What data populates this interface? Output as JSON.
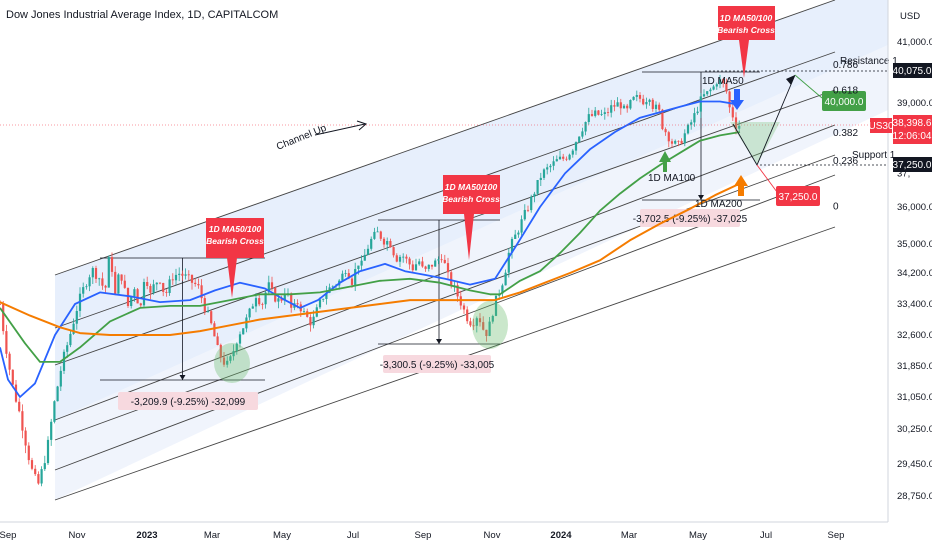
{
  "title": "Dow Jones Industrial Average Index, 1D, CAPITALCOM",
  "currency": "USD",
  "symbol": "US30",
  "last_price": "38,398.6",
  "countdown": "12:06:04",
  "colors": {
    "up": "#26a69a",
    "down": "#ef5350",
    "ma50": "#2962ff",
    "ma100": "#43a047",
    "ma200": "#f57c00",
    "callout": "#f23645",
    "channel_fill": "#e3ecfb",
    "measure_fill": "#f7d9df"
  },
  "chart_data": {
    "type": "candlestick",
    "x_labels": [
      "Sep",
      "Nov",
      "2023",
      "Mar",
      "May",
      "Jul",
      "Sep",
      "Nov",
      "2024",
      "Mar",
      "May",
      "Jul",
      "Sep"
    ],
    "y_ticks": [
      "41,000.0",
      "39,000.0",
      "36,000.0",
      "35,000.0",
      "34,200.0",
      "33,400.0",
      "32,600.0",
      "31,850.0",
      "31,050.0",
      "30,250.0",
      "29,450.0",
      "28,750.0"
    ],
    "y_ticks_partial": [
      "38,",
      "37,"
    ],
    "series": [
      {
        "name": "1D MA50",
        "anchors": [
          [
            0,
            32300
          ],
          [
            8,
            31500
          ],
          [
            20,
            31050
          ],
          [
            35,
            31400
          ],
          [
            55,
            32600
          ],
          [
            75,
            33400
          ],
          [
            100,
            33700
          ],
          [
            130,
            33600
          ],
          [
            160,
            33450
          ],
          [
            190,
            33500
          ],
          [
            215,
            33750
          ],
          [
            240,
            33950
          ],
          [
            265,
            33800
          ],
          [
            285,
            33500
          ],
          [
            300,
            33300
          ],
          [
            318,
            33500
          ],
          [
            340,
            33950
          ],
          [
            360,
            34250
          ],
          [
            385,
            34450
          ],
          [
            405,
            34250
          ],
          [
            425,
            34150
          ],
          [
            445,
            34050
          ],
          [
            470,
            33900
          ],
          [
            495,
            34050
          ],
          [
            515,
            34900
          ],
          [
            540,
            36000
          ],
          [
            565,
            37000
          ],
          [
            590,
            37700
          ],
          [
            615,
            38200
          ],
          [
            640,
            38600
          ],
          [
            660,
            38750
          ],
          [
            680,
            38900
          ],
          [
            700,
            39050
          ],
          [
            720,
            39050
          ],
          [
            740,
            38950
          ]
        ]
      },
      {
        "name": "1D MA100",
        "anchors": [
          [
            0,
            33300
          ],
          [
            25,
            32400
          ],
          [
            40,
            31950
          ],
          [
            60,
            31950
          ],
          [
            80,
            32300
          ],
          [
            110,
            32950
          ],
          [
            140,
            33300
          ],
          [
            170,
            33350
          ],
          [
            200,
            33350
          ],
          [
            230,
            33500
          ],
          [
            260,
            33650
          ],
          [
            290,
            33650
          ],
          [
            320,
            33700
          ],
          [
            350,
            33850
          ],
          [
            380,
            34000
          ],
          [
            410,
            34050
          ],
          [
            440,
            33950
          ],
          [
            470,
            33750
          ],
          [
            490,
            33650
          ],
          [
            500,
            33650
          ],
          [
            520,
            34000
          ],
          [
            540,
            34250
          ],
          [
            560,
            34750
          ],
          [
            580,
            35300
          ],
          [
            600,
            35900
          ],
          [
            620,
            36400
          ],
          [
            640,
            36850
          ],
          [
            660,
            37250
          ],
          [
            680,
            37600
          ],
          [
            700,
            37950
          ],
          [
            720,
            38100
          ],
          [
            740,
            38200
          ]
        ]
      },
      {
        "name": "1D MA200",
        "anchors": [
          [
            0,
            33450
          ],
          [
            30,
            33100
          ],
          [
            60,
            32800
          ],
          [
            80,
            32650
          ],
          [
            110,
            32600
          ],
          [
            140,
            32600
          ],
          [
            170,
            32600
          ],
          [
            200,
            32700
          ],
          [
            230,
            32850
          ],
          [
            260,
            33000
          ],
          [
            290,
            33100
          ],
          [
            320,
            33200
          ],
          [
            350,
            33300
          ],
          [
            380,
            33400
          ],
          [
            410,
            33500
          ],
          [
            440,
            33500
          ],
          [
            470,
            33500
          ],
          [
            495,
            33500
          ],
          [
            520,
            33700
          ],
          [
            545,
            33950
          ],
          [
            570,
            34200
          ],
          [
            600,
            34550
          ],
          [
            630,
            35100
          ],
          [
            660,
            35550
          ],
          [
            690,
            35950
          ],
          [
            715,
            36350
          ],
          [
            740,
            36700
          ]
        ]
      }
    ],
    "price_anchors": [
      [
        0,
        33400
      ],
      [
        3,
        32800
      ],
      [
        8,
        32000
      ],
      [
        13,
        31300
      ],
      [
        20,
        30600
      ],
      [
        28,
        29700
      ],
      [
        33,
        29200
      ],
      [
        38,
        28980
      ],
      [
        42,
        29300
      ],
      [
        48,
        29900
      ],
      [
        55,
        31000
      ],
      [
        62,
        31900
      ],
      [
        70,
        32600
      ],
      [
        78,
        33400
      ],
      [
        85,
        33900
      ],
      [
        92,
        34300
      ],
      [
        100,
        34050
      ],
      [
        105,
        33700
      ],
      [
        110,
        34800
      ],
      [
        115,
        33600
      ],
      [
        120,
        34300
      ],
      [
        128,
        33350
      ],
      [
        135,
        33900
      ],
      [
        140,
        33150
      ],
      [
        145,
        34300
      ],
      [
        150,
        33600
      ],
      [
        155,
        33950
      ],
      [
        160,
        34050
      ],
      [
        165,
        33600
      ],
      [
        172,
        34100
      ],
      [
        180,
        34200
      ],
      [
        190,
        34000
      ],
      [
        198,
        33850
      ],
      [
        205,
        33300
      ],
      [
        212,
        32800
      ],
      [
        218,
        32200
      ],
      [
        224,
        31950
      ],
      [
        228,
        31850
      ],
      [
        232,
        32100
      ],
      [
        238,
        32600
      ],
      [
        244,
        32850
      ],
      [
        250,
        33200
      ],
      [
        256,
        33650
      ],
      [
        262,
        33400
      ],
      [
        268,
        33900
      ],
      [
        274,
        33600
      ],
      [
        280,
        33450
      ],
      [
        286,
        33800
      ],
      [
        292,
        33200
      ],
      [
        298,
        33450
      ],
      [
        305,
        33100
      ],
      [
        312,
        32900
      ],
      [
        318,
        33300
      ],
      [
        325,
        33700
      ],
      [
        332,
        33850
      ],
      [
        340,
        34000
      ],
      [
        346,
        34350
      ],
      [
        352,
        34000
      ],
      [
        358,
        34500
      ],
      [
        362,
        34400
      ],
      [
        366,
        34800
      ],
      [
        372,
        35150
      ],
      [
        378,
        35300
      ],
      [
        384,
        35100
      ],
      [
        390,
        35050
      ],
      [
        396,
        34600
      ],
      [
        402,
        34700
      ],
      [
        408,
        34500
      ],
      [
        414,
        34300
      ],
      [
        418,
        34600
      ],
      [
        424,
        34200
      ],
      [
        430,
        34400
      ],
      [
        436,
        34500
      ],
      [
        442,
        34700
      ],
      [
        448,
        34100
      ],
      [
        454,
        33800
      ],
      [
        460,
        33500
      ],
      [
        466,
        33100
      ],
      [
        472,
        32900
      ],
      [
        478,
        33150
      ],
      [
        484,
        32700
      ],
      [
        488,
        32650
      ],
      [
        492,
        33150
      ],
      [
        498,
        33650
      ],
      [
        504,
        34100
      ],
      [
        510,
        34900
      ],
      [
        515,
        35200
      ],
      [
        520,
        35500
      ],
      [
        528,
        36000
      ],
      [
        535,
        36500
      ],
      [
        542,
        37000
      ],
      [
        550,
        37200
      ],
      [
        558,
        37400
      ],
      [
        565,
        37450
      ],
      [
        572,
        37700
      ],
      [
        580,
        38200
      ],
      [
        588,
        38600
      ],
      [
        596,
        38700
      ],
      [
        604,
        38650
      ],
      [
        612,
        38900
      ],
      [
        620,
        39000
      ],
      [
        626,
        38700
      ],
      [
        632,
        39100
      ],
      [
        638,
        39200
      ],
      [
        644,
        39050
      ],
      [
        650,
        39250
      ],
      [
        654,
        38800
      ],
      [
        658,
        38900
      ],
      [
        662,
        38400
      ],
      [
        666,
        38200
      ],
      [
        672,
        37900
      ],
      [
        678,
        37800
      ],
      [
        684,
        38100
      ],
      [
        690,
        38400
      ],
      [
        696,
        38750
      ],
      [
        702,
        39200
      ],
      [
        708,
        39350
      ],
      [
        714,
        39550
      ],
      [
        718,
        39800
      ],
      [
        722,
        39700
      ],
      [
        726,
        39450
      ],
      [
        730,
        38800
      ],
      [
        733,
        38650
      ],
      [
        736,
        38400
      ],
      [
        740,
        38400
      ]
    ],
    "fib_levels": [
      {
        "label": "0.786",
        "price": 40300
      },
      {
        "label": "0.618",
        "price": 39450
      },
      {
        "label": "0.382",
        "price": 38200
      },
      {
        "label": "0.236",
        "price": 37400
      },
      {
        "label": "0",
        "price": 36050
      }
    ],
    "annotations": {
      "channel_label": "Channel Up",
      "callouts": [
        {
          "title": "1D MA50/100",
          "subtitle": "Bearish Cross"
        },
        {
          "title": "1D MA50/100",
          "subtitle": "Bearish Cross"
        },
        {
          "title": "1D MA50/100",
          "subtitle": "Bearish Cross"
        }
      ],
      "measures": [
        "-3,209.9 (-9.25%) -32,099",
        "-3,300.5 (-9.25%) -33,005",
        "-3,702.5 (-9.25%) -37,025"
      ],
      "ma_labels": [
        "1D MA50",
        "1D MA100",
        "1D MA200"
      ],
      "resistance": {
        "label": "Resistance 1",
        "value": "40,075.0",
        "price": 40075
      },
      "support": {
        "label": "Support 1",
        "value": "37,250.0",
        "price": 37250
      },
      "targets": [
        "40,000.0",
        "37,250.0"
      ]
    }
  }
}
